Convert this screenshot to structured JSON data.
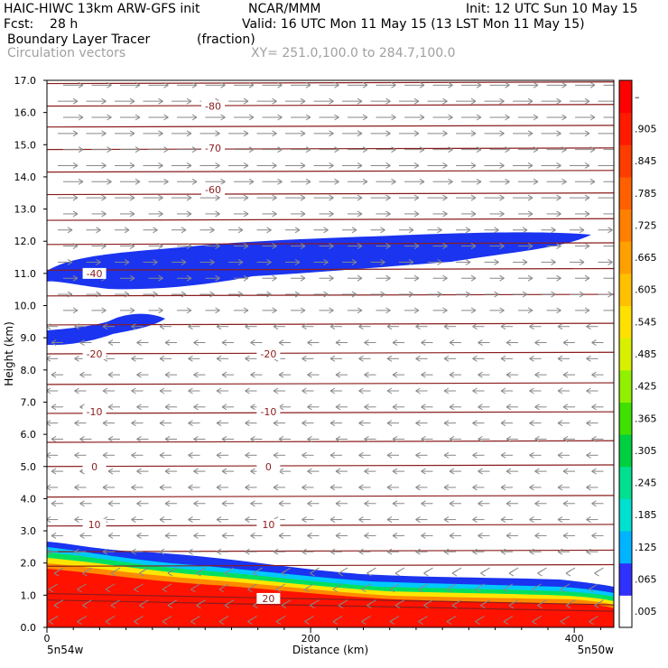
{
  "header": {
    "model": "HAIC-HIWC 13km ARW-GFS init",
    "center": "NCAR/MMM",
    "init": "Init: 12 UTC Sun 10 May 15",
    "fcst": "Fcst:    28 h",
    "valid": "Valid: 16 UTC Mon 11 May 15 (13 LST Mon 11 May 15)",
    "field": "Boundary Layer Tracer",
    "units": "(fraction)",
    "overlay": "Circulation vectors",
    "xy": "XY= 251.0,100.0 to 284.7,100.0"
  },
  "chart_data": {
    "type": "heatmap",
    "title": "Boundary Layer Tracer",
    "ylabel": "Height (km)",
    "xlabel": "Distance (km)",
    "xlim": [
      0,
      430
    ],
    "ylim": [
      0,
      17
    ],
    "x_ticks": [
      0,
      200,
      400
    ],
    "y_ticks": [
      "0.0",
      "1.0",
      "2.0",
      "3.0",
      "4.0",
      "5.0",
      "6.0",
      "7.0",
      "8.0",
      "9.0",
      "10.0",
      "11.0",
      "12.0",
      "13.0",
      "14.0",
      "15.0",
      "16.0",
      "17.0"
    ],
    "x_end_labels": {
      "left": "5n54w",
      "right": "5n50w"
    },
    "colorbar": {
      "labels": [
        ".005",
        ".065",
        ".125",
        ".185",
        ".245",
        ".305",
        ".365",
        ".425",
        ".485",
        ".545",
        ".605",
        ".665",
        ".725",
        ".785",
        ".845",
        ".905",
        "–"
      ],
      "colors": [
        "#ffffff",
        "#3030ff",
        "#00b4ff",
        "#00e0d0",
        "#00e090",
        "#00d040",
        "#40e000",
        "#90f000",
        "#d8f000",
        "#ffe000",
        "#ffc000",
        "#ffa000",
        "#ff8000",
        "#ff6000",
        "#ff3c00",
        "#ff1a00",
        "#ff0000"
      ]
    },
    "contour_labels": [
      {
        "x": 126,
        "y": 16.2,
        "text": "-80"
      },
      {
        "x": 126,
        "y": 14.9,
        "text": "-70"
      },
      {
        "x": 126,
        "y": 13.6,
        "text": "-60"
      },
      {
        "x": 36,
        "y": 11.0,
        "text": "-40"
      },
      {
        "x": 36,
        "y": 8.5,
        "text": "-20"
      },
      {
        "x": 168,
        "y": 8.5,
        "text": "-20"
      },
      {
        "x": 36,
        "y": 6.7,
        "text": "-10"
      },
      {
        "x": 168,
        "y": 6.7,
        "text": "-10"
      },
      {
        "x": 36,
        "y": 5.0,
        "text": "0"
      },
      {
        "x": 168,
        "y": 5.0,
        "text": "0"
      },
      {
        "x": 36,
        "y": 3.2,
        "text": "10"
      },
      {
        "x": 168,
        "y": 3.2,
        "text": "10"
      },
      {
        "x": 168,
        "y": 0.9,
        "text": "20"
      }
    ]
  }
}
